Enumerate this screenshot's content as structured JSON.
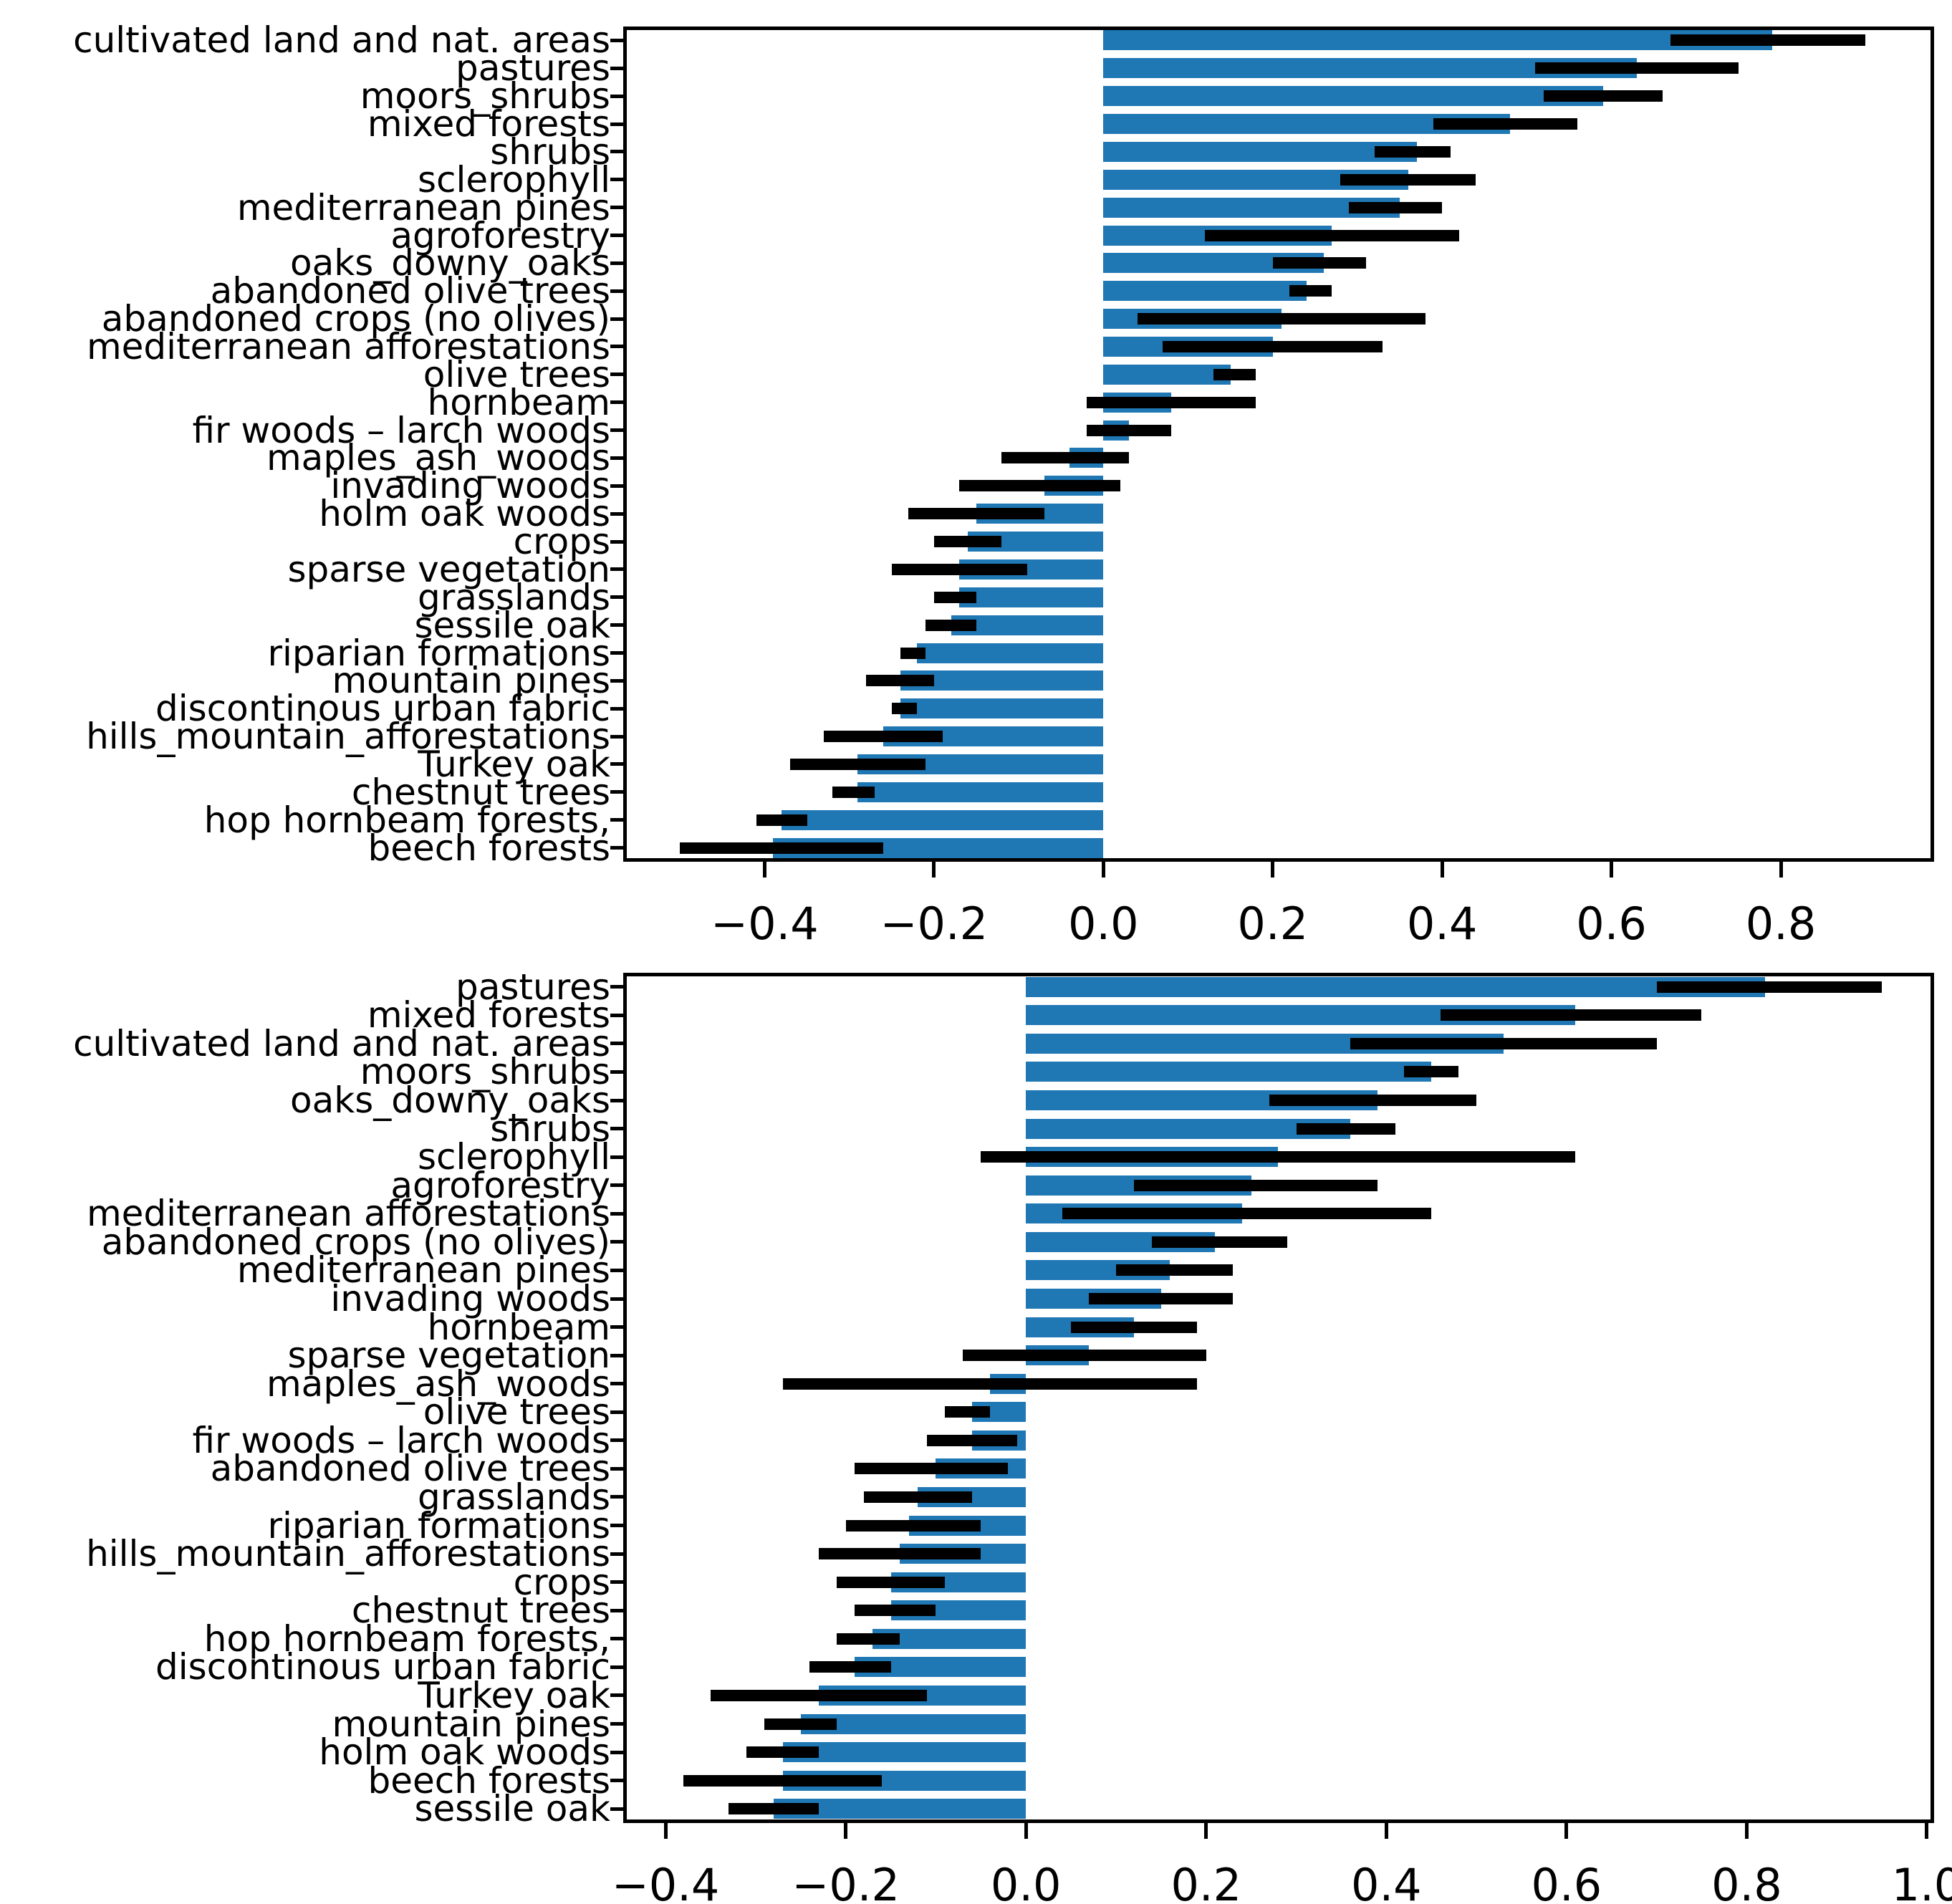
{
  "page": {
    "background_color": "#ffffff",
    "title": ""
  },
  "chart_data": [
    {
      "type": "bar",
      "orientation": "horizontal",
      "title": "",
      "xlabel": "",
      "ylabel": "",
      "grid": false,
      "legend": null,
      "bar_color": "#1f77b4",
      "error_bar_color": "#000000",
      "xlim": [
        -0.567,
        0.981
      ],
      "xtick_values": [
        -0.4,
        -0.2,
        0.0,
        0.2,
        0.4,
        0.6,
        0.8
      ],
      "xtick_labels": [
        "−0.4",
        "−0.2",
        "0.0",
        "0.2",
        "0.4",
        "0.6",
        "0.8"
      ],
      "categories": [
        "cultivated land and nat. areas",
        "pastures",
        "moors_shrubs",
        "mixed forests",
        "shrubs",
        "sclerophyll",
        "mediterranean pines",
        "agroforestry",
        "oaks_downy_oaks",
        "abandoned olive trees",
        "abandoned crops (no olives)",
        "mediterranean afforestations",
        "olive trees",
        "hornbeam",
        "fir woods – larch woods",
        "maples_ash_woods",
        "invading woods",
        "holm oak woods",
        "crops",
        "sparse vegetation",
        "grasslands",
        "sessile oak",
        "riparian formations",
        "mountain pines",
        "discontinous urban fabric",
        "hills_mountain_afforestations",
        "Turkey oak",
        "chestnut trees",
        "hop hornbeam forests,",
        "beech forests"
      ],
      "values": [
        0.79,
        0.63,
        0.59,
        0.48,
        0.37,
        0.36,
        0.35,
        0.27,
        0.26,
        0.24,
        0.21,
        0.2,
        0.15,
        0.08,
        0.03,
        -0.04,
        -0.07,
        -0.15,
        -0.16,
        -0.17,
        -0.17,
        -0.18,
        -0.22,
        -0.24,
        -0.24,
        -0.26,
        -0.29,
        -0.29,
        -0.38,
        -0.39
      ],
      "error_low": [
        0.67,
        0.51,
        0.52,
        0.39,
        0.32,
        0.28,
        0.29,
        0.12,
        0.2,
        0.22,
        0.04,
        0.07,
        0.13,
        -0.02,
        -0.02,
        -0.12,
        -0.17,
        -0.23,
        -0.2,
        -0.25,
        -0.2,
        -0.21,
        -0.24,
        -0.28,
        -0.25,
        -0.33,
        -0.37,
        -0.32,
        -0.41,
        -0.5
      ],
      "error_high": [
        0.9,
        0.75,
        0.66,
        0.56,
        0.41,
        0.44,
        0.4,
        0.42,
        0.31,
        0.27,
        0.38,
        0.33,
        0.18,
        0.18,
        0.08,
        0.03,
        0.02,
        -0.07,
        -0.12,
        -0.09,
        -0.15,
        -0.15,
        -0.21,
        -0.2,
        -0.22,
        -0.19,
        -0.21,
        -0.27,
        -0.35,
        -0.26
      ]
    },
    {
      "type": "bar",
      "orientation": "horizontal",
      "title": "",
      "xlabel": "",
      "ylabel": "",
      "grid": false,
      "legend": null,
      "bar_color": "#1f77b4",
      "error_bar_color": "#000000",
      "xlim": [
        -0.447,
        1.008
      ],
      "xtick_values": [
        -0.4,
        -0.2,
        0.0,
        0.2,
        0.4,
        0.6,
        0.8,
        1.0
      ],
      "xtick_labels": [
        "−0.4",
        "−0.2",
        "0.0",
        "0.2",
        "0.4",
        "0.6",
        "0.8",
        "1.0"
      ],
      "categories": [
        "pastures",
        "mixed forests",
        "cultivated land and nat. areas",
        "moors_shrubs",
        "oaks_downy_oaks",
        "shrubs",
        "sclerophyll",
        "agroforestry",
        "mediterranean afforestations",
        "abandoned crops (no olives)",
        "mediterranean pines",
        "invading woods",
        "hornbeam",
        "sparse vegetation",
        "maples_ash_woods",
        "olive trees",
        "fir woods – larch woods",
        "abandoned olive trees",
        "grasslands",
        "riparian formations",
        "hills_mountain_afforestations",
        "crops",
        "chestnut trees",
        "hop hornbeam forests,",
        "discontinous urban fabric",
        "Turkey oak",
        "mountain pines",
        "holm oak woods",
        "beech forests",
        "sessile oak"
      ],
      "values": [
        0.82,
        0.61,
        0.53,
        0.45,
        0.39,
        0.36,
        0.28,
        0.25,
        0.24,
        0.21,
        0.16,
        0.15,
        0.12,
        0.07,
        -0.04,
        -0.06,
        -0.06,
        -0.1,
        -0.12,
        -0.13,
        -0.14,
        -0.15,
        -0.15,
        -0.17,
        -0.19,
        -0.23,
        -0.25,
        -0.27,
        -0.27,
        -0.28
      ],
      "error_low": [
        0.7,
        0.46,
        0.36,
        0.42,
        0.27,
        0.3,
        -0.05,
        0.12,
        0.04,
        0.14,
        0.1,
        0.07,
        0.05,
        -0.07,
        -0.27,
        -0.09,
        -0.11,
        -0.19,
        -0.18,
        -0.2,
        -0.23,
        -0.21,
        -0.19,
        -0.21,
        -0.24,
        -0.35,
        -0.29,
        -0.31,
        -0.38,
        -0.33
      ],
      "error_high": [
        0.95,
        0.75,
        0.7,
        0.48,
        0.5,
        0.41,
        0.61,
        0.39,
        0.45,
        0.29,
        0.23,
        0.23,
        0.19,
        0.2,
        0.19,
        -0.04,
        -0.01,
        -0.02,
        -0.06,
        -0.05,
        -0.05,
        -0.09,
        -0.1,
        -0.14,
        -0.15,
        -0.11,
        -0.21,
        -0.23,
        -0.16,
        -0.23
      ]
    }
  ]
}
